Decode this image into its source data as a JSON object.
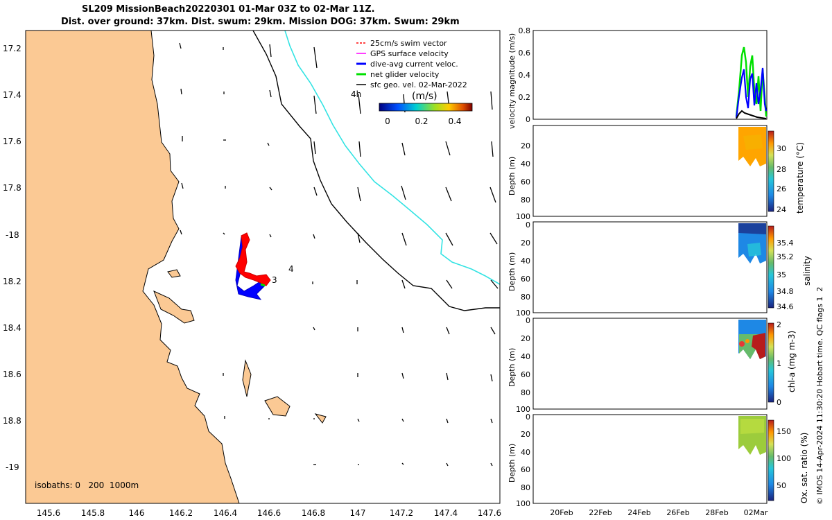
{
  "title": {
    "line1": "SL209 MissionBeach20220301 01-Mar 03Z to 02-Mar 11Z.",
    "line2": "Dist. over ground: 37km. Dist. swum: 29km. Mission DOG: 37km. Swum: 29km"
  },
  "map": {
    "lat_ticks": [
      "17.2",
      "17.4",
      "17.6",
      "17.8",
      "-18",
      "18.2",
      "18.4",
      "18.6",
      "18.8",
      "-19"
    ],
    "lon_ticks": [
      "145.6",
      "145.8",
      "146",
      "146.2",
      "146.4",
      "146.6",
      "146.8",
      "147",
      "147.2",
      "147.4",
      "147.6"
    ],
    "legend": [
      {
        "label": "25cm/s swim vector",
        "color": "#ff0000"
      },
      {
        "label": "GPS surface velocity",
        "color": "#ff00ff"
      },
      {
        "label": "dive-avg current veloc.",
        "color": "#0000ff"
      },
      {
        "label": "net glider velocity",
        "color": "#00e000"
      },
      {
        "label": "sfc geo. vel. 02-Mar-2022",
        "color": "#000000"
      }
    ],
    "colorbar_title": "(m/s)",
    "colorbar_ticks": [
      "0",
      "0.2",
      "0.4"
    ],
    "isobaths_label": "isobaths: 0   200  1000m",
    "annotations": [
      "4h",
      "3",
      "4"
    ],
    "colors": {
      "land": "#fbc994",
      "sea": "#ffffff",
      "isobath_200": "#000000",
      "isobath_1000": "#33e3e3",
      "track": "#0000ff",
      "swim": "#ff0000"
    }
  },
  "panels": {
    "velocity": {
      "ylabel": "velocity magnitude (m/s)",
      "ticks": [
        "0",
        "0.2",
        "0.4",
        "0.6",
        "0.8"
      ]
    },
    "temperature": {
      "ylabel": "Depth (m)",
      "cbar_label": "temperature (°C)",
      "cbar_ticks": [
        "24",
        "26",
        "28",
        "30"
      ]
    },
    "salinity": {
      "ylabel": "Depth (m)",
      "cbar_label": "salinity",
      "cbar_ticks": [
        "34.6",
        "34.8",
        "35",
        "35.2",
        "35.4"
      ]
    },
    "chla": {
      "ylabel": "Depth (m)",
      "cbar_label": "chl-a (mg m-3)",
      "cbar_ticks": [
        "0",
        "1",
        "2"
      ]
    },
    "oxygen": {
      "ylabel": "Depth (m)",
      "cbar_label": "Ox. sat. ratio (%)",
      "cbar_ticks": [
        "50",
        "100",
        "150"
      ]
    },
    "depth_ticks": [
      "0",
      "20",
      "40",
      "60",
      "80",
      "100"
    ],
    "time_ticks": [
      "20Feb",
      "22Feb",
      "24Feb",
      "26Feb",
      "28Feb",
      "02Mar"
    ]
  },
  "credit": "© IMOS 14-Apr-2024 11:30:20 Hobart time. QC flags 1  2"
}
